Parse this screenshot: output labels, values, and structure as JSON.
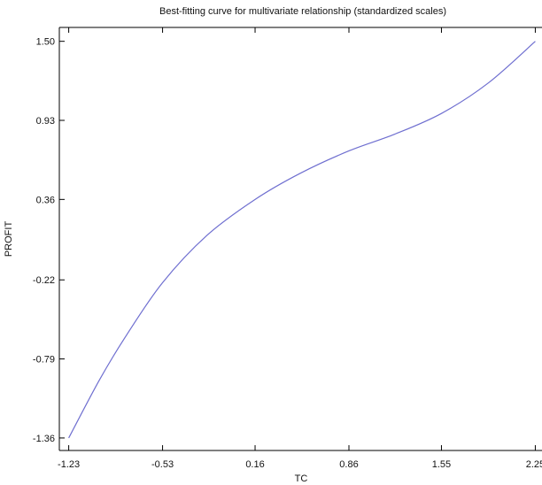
{
  "chart_data": {
    "type": "line",
    "title": "Best-fitting curve for multivariate relationship (standardized scales)",
    "xlabel": "TC",
    "ylabel": "PROFIT",
    "xlim": [
      -1.3,
      2.3
    ],
    "ylim": [
      -1.45,
      1.6
    ],
    "x_ticks": [
      {
        "value": -1.23,
        "label": "-1.23"
      },
      {
        "value": -0.53,
        "label": "-0.53"
      },
      {
        "value": 0.16,
        "label": "0.16"
      },
      {
        "value": 0.86,
        "label": "0.86"
      },
      {
        "value": 1.55,
        "label": "1.55"
      },
      {
        "value": 2.25,
        "label": "2.25"
      }
    ],
    "y_ticks": [
      {
        "value": 1.5,
        "label": "1.50"
      },
      {
        "value": 0.93,
        "label": "0.93"
      },
      {
        "value": 0.36,
        "label": "0.36"
      },
      {
        "value": -0.22,
        "label": "-0.22"
      },
      {
        "value": -0.79,
        "label": "-0.79"
      },
      {
        "value": -1.36,
        "label": "-1.36"
      }
    ],
    "grid": false,
    "legend": false,
    "series": [
      {
        "color": "#6f6fd0",
        "x": [
          -1.23,
          -1.0,
          -0.8,
          -0.53,
          -0.2,
          0.16,
          0.5,
          0.86,
          1.2,
          1.55,
          1.9,
          2.25
        ],
        "y": [
          -1.36,
          -0.94,
          -0.62,
          -0.24,
          0.1,
          0.36,
          0.55,
          0.71,
          0.83,
          0.98,
          1.2,
          1.5
        ]
      }
    ]
  }
}
